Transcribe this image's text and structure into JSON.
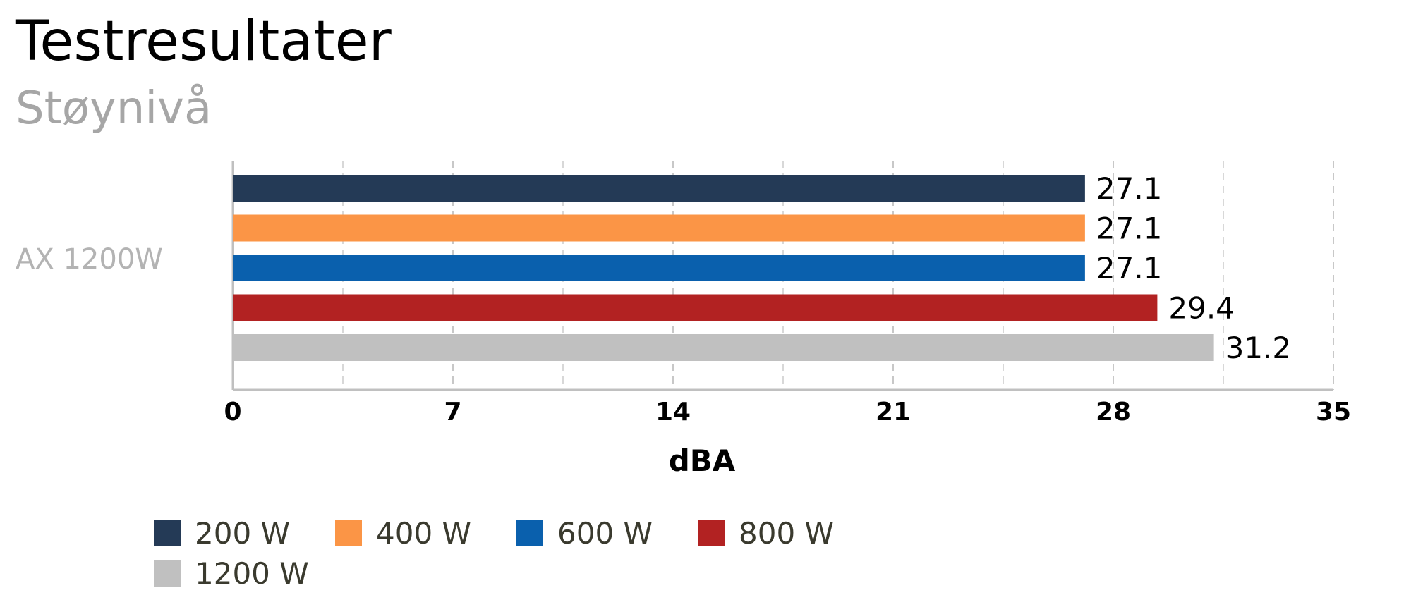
{
  "chart_data": {
    "type": "bar",
    "orientation": "horizontal",
    "title": "Testresultater",
    "subtitle": "Støynivå",
    "categories": [
      "AX 1200W"
    ],
    "series": [
      {
        "name": "200 W",
        "color": "#243a56",
        "values": [
          27.1
        ]
      },
      {
        "name": "400 W",
        "color": "#fb9546",
        "values": [
          27.1
        ]
      },
      {
        "name": "600 W",
        "color": "#0a60ad",
        "values": [
          27.1
        ]
      },
      {
        "name": "800 W",
        "color": "#b22222",
        "values": [
          29.4
        ]
      },
      {
        "name": "1200 W",
        "color": "#c0c0c0",
        "values": [
          31.2
        ]
      }
    ],
    "data_labels": [
      "27.1",
      "27.1",
      "27.1",
      "29.4",
      "31.2"
    ],
    "xlabel": "dBA",
    "ylabel": "",
    "xlim": [
      0,
      35
    ],
    "x_ticks": [
      "0",
      "7",
      "14",
      "21",
      "28",
      "35"
    ],
    "grid": "vertical dashed",
    "legend_position": "bottom"
  }
}
